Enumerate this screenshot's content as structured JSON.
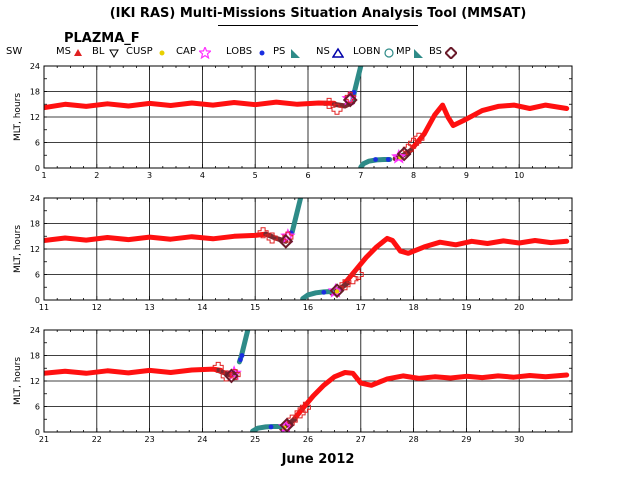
{
  "header": {
    "title": "(IKI RAS) Multi-Missions Situation Analysis Tool (MMSAT)",
    "instrument": "PLAZMA_F"
  },
  "legend": [
    {
      "label": "SW",
      "symbol": "none",
      "color": "#000000"
    },
    {
      "label": "MS",
      "symbol": "triangle-up",
      "color": "#e02020"
    },
    {
      "label": "BL",
      "symbol": "triangle-down",
      "color": "#000000"
    },
    {
      "label": "CUSP",
      "symbol": "dot",
      "color": "#e8d000"
    },
    {
      "label": "CAP",
      "symbol": "star",
      "color": "#ff30ff"
    },
    {
      "label": "LOBS",
      "symbol": "dot",
      "color": "#1a2ee0"
    },
    {
      "label": "PS",
      "symbol": "wedge",
      "color": "#2e8b88"
    },
    {
      "label": "NS",
      "symbol": "triangle-outline",
      "color": "#0000aa"
    },
    {
      "label": "LOBN",
      "symbol": "circle-outline",
      "color": "#2e8b88"
    },
    {
      "label": "MP",
      "symbol": "wedge",
      "color": "#2e8b88"
    },
    {
      "label": "BS",
      "symbol": "diamond-outline",
      "color": "#6a1a2a"
    }
  ],
  "colors": {
    "sw": "#ff1010",
    "bs_cross": "#e02020",
    "mp_diamond": "#6a1a2a",
    "magnetosheath": "#7a2a30",
    "outer_track": "#2e8b88",
    "lobs": "#1a2ee0",
    "cap": "#ff30ff"
  },
  "chart_data": [
    {
      "type": "scatter",
      "ylabel": "MLT, hours",
      "xlim": [
        1,
        11
      ],
      "ylim": [
        0,
        24
      ],
      "xticks": [
        1,
        2,
        3,
        4,
        5,
        6,
        7,
        8,
        9,
        10
      ],
      "yticks": [
        0,
        6,
        12,
        18,
        24
      ],
      "ytick_labels": [
        "0",
        "6",
        "12",
        "18",
        "24"
      ],
      "grid": true,
      "series": [
        {
          "kind": "sw",
          "points": [
            [
              1.0,
              14.2
            ],
            [
              1.4,
              15.0
            ],
            [
              1.8,
              14.5
            ],
            [
              2.2,
              15.1
            ],
            [
              2.6,
              14.6
            ],
            [
              3.0,
              15.2
            ],
            [
              3.4,
              14.7
            ],
            [
              3.8,
              15.3
            ],
            [
              4.2,
              14.8
            ],
            [
              4.6,
              15.4
            ],
            [
              5.0,
              14.9
            ],
            [
              5.4,
              15.5
            ],
            [
              5.8,
              15.0
            ],
            [
              6.2,
              15.3
            ],
            [
              6.5,
              15.2
            ]
          ]
        },
        {
          "kind": "sw",
          "points": [
            [
              8.0,
              5.0
            ],
            [
              8.2,
              8.0
            ],
            [
              8.4,
              12.5
            ],
            [
              8.55,
              14.8
            ],
            [
              8.65,
              12.0
            ],
            [
              8.75,
              10.0
            ],
            [
              9.0,
              11.5
            ],
            [
              9.3,
              13.5
            ],
            [
              9.6,
              14.5
            ],
            [
              9.9,
              14.8
            ],
            [
              10.2,
              14.0
            ],
            [
              10.5,
              14.8
            ],
            [
              10.9,
              14.0
            ]
          ]
        },
        {
          "kind": "sheath",
          "points": [
            [
              6.5,
              15.0
            ],
            [
              6.7,
              14.6
            ],
            [
              6.85,
              15.5
            ]
          ]
        },
        {
          "kind": "sheath",
          "points": [
            [
              7.65,
              2.2
            ],
            [
              7.8,
              3.0
            ],
            [
              7.95,
              4.2
            ]
          ]
        },
        {
          "kind": "outer",
          "points": [
            [
              6.85,
              16.0
            ],
            [
              6.88,
              18.0
            ],
            [
              6.92,
              20.0
            ],
            [
              6.96,
              22.0
            ],
            [
              7.0,
              24.0
            ]
          ]
        },
        {
          "kind": "outer",
          "points": [
            [
              7.0,
              0.2
            ],
            [
              7.05,
              1.0
            ],
            [
              7.15,
              1.6
            ],
            [
              7.3,
              1.9
            ],
            [
              7.45,
              2.0
            ],
            [
              7.55,
              2.0
            ]
          ]
        },
        {
          "kind": "lobs",
          "points": [
            [
              6.84,
              17.2
            ],
            [
              6.87,
              17.8
            ],
            [
              7.28,
              2.0
            ],
            [
              7.52,
              2.0
            ]
          ]
        },
        {
          "kind": "cap",
          "points": [
            [
              6.78,
              16.3
            ],
            [
              7.72,
              2.6
            ]
          ]
        },
        {
          "kind": "cusp",
          "points": [
            [
              7.75,
              2.5
            ]
          ]
        },
        {
          "kind": "bs",
          "points": [
            [
              6.4,
              15.2
            ],
            [
              6.55,
              13.8
            ],
            [
              6.8,
              16.6
            ],
            [
              7.9,
              4.4
            ],
            [
              8.0,
              5.8
            ],
            [
              8.1,
              7.0
            ]
          ]
        },
        {
          "kind": "mp",
          "points": [
            [
              6.8,
              16.0
            ],
            [
              7.82,
              3.3
            ]
          ]
        }
      ]
    },
    {
      "type": "scatter",
      "ylabel": "MLT, hours",
      "xlim": [
        11,
        21
      ],
      "ylim": [
        0,
        24
      ],
      "xticks": [
        11,
        12,
        13,
        14,
        15,
        16,
        17,
        18,
        19,
        20
      ],
      "yticks": [
        0,
        6,
        12,
        18,
        24
      ],
      "ytick_labels": [
        "0",
        "6",
        "12",
        "18",
        "24"
      ],
      "grid": true,
      "series": [
        {
          "kind": "sw",
          "points": [
            [
              11.0,
              14.0
            ],
            [
              11.4,
              14.6
            ],
            [
              11.8,
              14.1
            ],
            [
              12.2,
              14.7
            ],
            [
              12.6,
              14.2
            ],
            [
              13.0,
              14.8
            ],
            [
              13.4,
              14.3
            ],
            [
              13.8,
              14.9
            ],
            [
              14.2,
              14.4
            ],
            [
              14.6,
              15.0
            ],
            [
              15.0,
              15.2
            ],
            [
              15.2,
              15.5
            ]
          ]
        },
        {
          "kind": "sw",
          "points": [
            [
              16.7,
              4.0
            ],
            [
              16.9,
              7.0
            ],
            [
              17.1,
              10.0
            ],
            [
              17.3,
              12.5
            ],
            [
              17.5,
              14.5
            ],
            [
              17.6,
              14.0
            ],
            [
              17.75,
              11.5
            ],
            [
              17.9,
              11.0
            ],
            [
              18.2,
              12.5
            ],
            [
              18.5,
              13.6
            ],
            [
              18.8,
              13.0
            ],
            [
              19.1,
              13.8
            ],
            [
              19.4,
              13.3
            ],
            [
              19.7,
              13.9
            ],
            [
              20.0,
              13.4
            ],
            [
              20.3,
              14.0
            ],
            [
              20.6,
              13.5
            ],
            [
              20.9,
              13.8
            ]
          ]
        },
        {
          "kind": "sheath",
          "points": [
            [
              15.2,
              15.5
            ],
            [
              15.4,
              14.5
            ],
            [
              15.58,
              13.8
            ]
          ]
        },
        {
          "kind": "sheath",
          "points": [
            [
              16.45,
              1.6
            ],
            [
              16.6,
              2.6
            ],
            [
              16.75,
              4.0
            ]
          ]
        },
        {
          "kind": "outer",
          "points": [
            [
              15.7,
              16.0
            ],
            [
              15.74,
              18.0
            ],
            [
              15.78,
              20.0
            ],
            [
              15.82,
              22.0
            ],
            [
              15.86,
              24.0
            ]
          ]
        },
        {
          "kind": "outer",
          "points": [
            [
              15.9,
              0.3
            ],
            [
              16.0,
              1.2
            ],
            [
              16.15,
              1.7
            ],
            [
              16.3,
              1.9
            ],
            [
              16.45,
              2.0
            ]
          ]
        },
        {
          "kind": "lobs",
          "points": [
            [
              15.68,
              15.8
            ],
            [
              16.3,
              1.8
            ]
          ]
        },
        {
          "kind": "cap",
          "points": [
            [
              15.62,
              15.0
            ],
            [
              16.52,
              2.1
            ]
          ]
        },
        {
          "kind": "cusp",
          "points": [
            [
              16.55,
              2.0
            ]
          ]
        },
        {
          "kind": "bs",
          "points": [
            [
              15.15,
              15.8
            ],
            [
              15.32,
              14.6
            ],
            [
              15.62,
              14.8
            ],
            [
              16.7,
              3.6
            ],
            [
              16.85,
              5.0
            ],
            [
              16.95,
              6.0
            ]
          ]
        },
        {
          "kind": "mp",
          "points": [
            [
              15.58,
              13.8
            ],
            [
              16.55,
              2.2
            ]
          ]
        }
      ]
    },
    {
      "type": "scatter",
      "ylabel": "MLT, hours",
      "xlim": [
        21,
        31
      ],
      "ylim": [
        0,
        24
      ],
      "xticks": [
        21,
        22,
        23,
        24,
        25,
        26,
        27,
        28,
        29,
        30
      ],
      "yticks": [
        0,
        6,
        12,
        18,
        24
      ],
      "ytick_labels": [
        "0",
        "6",
        "12",
        "18",
        "24"
      ],
      "grid": true,
      "xlabel": "June 2012",
      "series": [
        {
          "kind": "sw",
          "points": [
            [
              21.0,
              13.8
            ],
            [
              21.4,
              14.3
            ],
            [
              21.8,
              13.8
            ],
            [
              22.2,
              14.4
            ],
            [
              22.6,
              13.9
            ],
            [
              23.0,
              14.5
            ],
            [
              23.4,
              14.0
            ],
            [
              23.8,
              14.6
            ],
            [
              24.2,
              14.8
            ],
            [
              24.35,
              14.5
            ]
          ]
        },
        {
          "kind": "sw",
          "points": [
            [
              25.7,
              2.5
            ],
            [
              25.9,
              5.5
            ],
            [
              26.1,
              8.5
            ],
            [
              26.3,
              11.0
            ],
            [
              26.5,
              13.0
            ],
            [
              26.7,
              14.0
            ],
            [
              26.85,
              13.8
            ],
            [
              27.0,
              11.5
            ],
            [
              27.2,
              11.0
            ],
            [
              27.5,
              12.5
            ],
            [
              27.8,
              13.2
            ],
            [
              28.1,
              12.6
            ],
            [
              28.4,
              13.0
            ],
            [
              28.7,
              12.7
            ],
            [
              29.0,
              13.1
            ],
            [
              29.3,
              12.8
            ],
            [
              29.6,
              13.2
            ],
            [
              29.9,
              12.9
            ],
            [
              30.2,
              13.3
            ],
            [
              30.5,
              13.0
            ],
            [
              30.9,
              13.4
            ]
          ]
        },
        {
          "kind": "sheath",
          "points": [
            [
              24.3,
              14.5
            ],
            [
              24.5,
              13.5
            ],
            [
              24.65,
              14.0
            ]
          ]
        },
        {
          "kind": "sheath",
          "points": [
            [
              25.5,
              0.8
            ],
            [
              25.62,
              1.8
            ],
            [
              25.75,
              3.0
            ]
          ]
        },
        {
          "kind": "outer",
          "points": [
            [
              24.7,
              16.5
            ],
            [
              24.74,
              18.0
            ],
            [
              24.78,
              20.0
            ],
            [
              24.82,
              22.0
            ],
            [
              24.86,
              24.0
            ]
          ]
        },
        {
          "kind": "outer",
          "points": [
            [
              24.95,
              0.2
            ],
            [
              25.05,
              0.9
            ],
            [
              25.2,
              1.2
            ],
            [
              25.35,
              1.3
            ],
            [
              25.5,
              1.3
            ]
          ]
        },
        {
          "kind": "lobs",
          "points": [
            [
              24.72,
              17.0
            ],
            [
              24.75,
              18.0
            ],
            [
              25.3,
              1.2
            ]
          ]
        },
        {
          "kind": "cap",
          "points": [
            [
              24.6,
              13.8
            ],
            [
              25.58,
              1.2
            ]
          ]
        },
        {
          "kind": "cusp",
          "points": [
            [
              25.55,
              1.0
            ]
          ]
        },
        {
          "kind": "bs",
          "points": [
            [
              24.3,
              15.2
            ],
            [
              24.45,
              13.2
            ],
            [
              24.62,
              13.5
            ],
            [
              25.7,
              2.8
            ],
            [
              25.85,
              4.5
            ],
            [
              25.95,
              5.8
            ]
          ]
        },
        {
          "kind": "mp",
          "points": [
            [
              24.55,
              13.2
            ],
            [
              25.6,
              1.6
            ]
          ]
        }
      ]
    }
  ]
}
